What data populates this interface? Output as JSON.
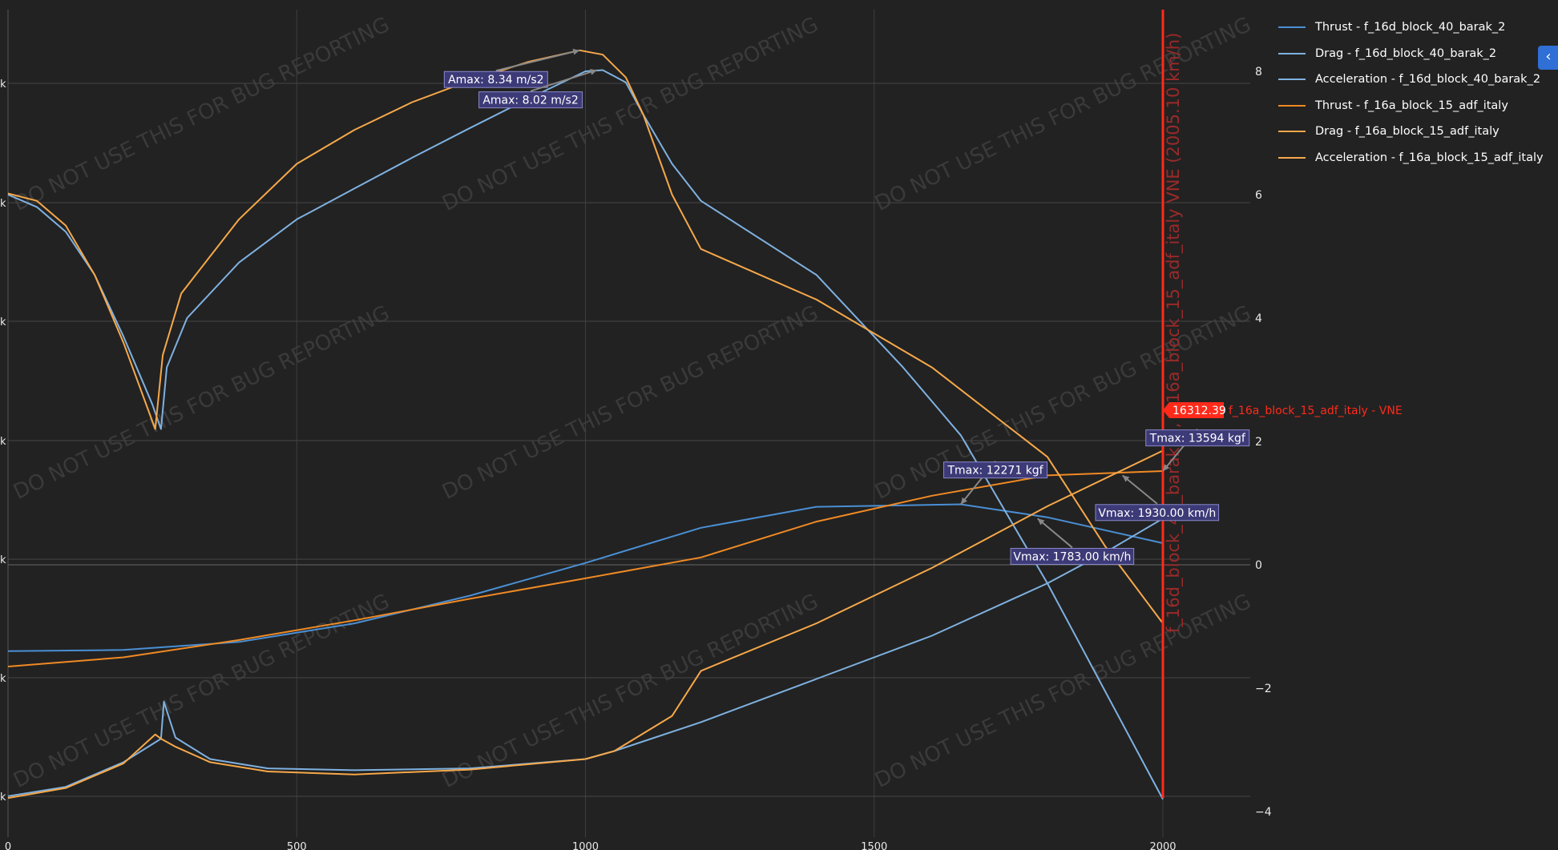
{
  "watermark": "DO NOT USE THIS FOR BUG REPORTING",
  "collapse_icon": "chevron-left-icon",
  "chart_data": {
    "type": "line",
    "grid": true,
    "legend": "top-right",
    "x_range": [
      0,
      2150
    ],
    "x_ticks": [
      0,
      500,
      1000,
      1500,
      2000
    ],
    "x_tick_labels": [
      "0",
      "500",
      "1000",
      "1500",
      "2000"
    ],
    "y2_range": [
      -4,
      8
    ],
    "y2_ticks": [
      -4,
      -2,
      0,
      2,
      4,
      6,
      8
    ],
    "y2_tick_labels": [
      "−4",
      "−2",
      "0",
      "2",
      "4",
      "6",
      "8"
    ],
    "left_tick_marks": [
      "k",
      "k",
      "k",
      "k",
      "k",
      "k",
      "k",
      "0"
    ],
    "vne": {
      "x": 2000,
      "vertical_label": "f_16d_block_40_barak_2, f_16a_block_15_adf_italy VNE (2005.10 km/h)",
      "value_label": "16312.39",
      "name_label": "f_16a_block_15_adf_italy - VNE",
      "color": "#ff2a1a"
    },
    "series": [
      {
        "name": "Thrust - f_16d_block_40_barak_2",
        "color": "#4a8fd4",
        "points": [
          [
            0,
            -1.4
          ],
          [
            200,
            -1.38
          ],
          [
            400,
            -1.25
          ],
          [
            600,
            -0.95
          ],
          [
            800,
            -0.5
          ],
          [
            1000,
            0.03
          ],
          [
            1200,
            0.6
          ],
          [
            1400,
            0.94
          ],
          [
            1650,
            0.98
          ],
          [
            1800,
            0.77
          ],
          [
            2000,
            0.35
          ]
        ]
      },
      {
        "name": "Drag - f_16d_block_40_barak_2",
        "color": "#7fb1e0",
        "points": [
          [
            0,
            -3.75
          ],
          [
            100,
            -3.6
          ],
          [
            200,
            -3.2
          ],
          [
            265,
            -2.82
          ],
          [
            270,
            -2.22
          ],
          [
            290,
            -2.8
          ],
          [
            350,
            -3.15
          ],
          [
            450,
            -3.3
          ],
          [
            600,
            -3.33
          ],
          [
            800,
            -3.3
          ],
          [
            1000,
            -3.15
          ],
          [
            1050,
            -3.02
          ],
          [
            1200,
            -2.55
          ],
          [
            1400,
            -1.85
          ],
          [
            1600,
            -1.15
          ],
          [
            1800,
            -0.3
          ],
          [
            1900,
            0.2
          ],
          [
            2000,
            0.75
          ]
        ]
      },
      {
        "name": "Acceleration - f_16d_block_40_barak_2",
        "color": "#7fb1e0",
        "points": [
          [
            0,
            6.0
          ],
          [
            50,
            5.8
          ],
          [
            100,
            5.4
          ],
          [
            150,
            4.7
          ],
          [
            200,
            3.7
          ],
          [
            250,
            2.6
          ],
          [
            265,
            2.2
          ],
          [
            275,
            3.2
          ],
          [
            310,
            4.0
          ],
          [
            400,
            4.9
          ],
          [
            500,
            5.6
          ],
          [
            600,
            6.1
          ],
          [
            700,
            6.6
          ],
          [
            800,
            7.08
          ],
          [
            900,
            7.55
          ],
          [
            1000,
            8.0
          ],
          [
            1030,
            8.02
          ],
          [
            1070,
            7.82
          ],
          [
            1100,
            7.3
          ],
          [
            1150,
            6.5
          ],
          [
            1200,
            5.9
          ],
          [
            1400,
            4.7
          ],
          [
            1550,
            3.2
          ],
          [
            1650,
            2.1
          ],
          [
            1800,
            -0.3
          ],
          [
            2000,
            -3.8
          ]
        ]
      },
      {
        "name": "Thrust - f_16a_block_15_adf_italy",
        "color": "#f08a24",
        "points": [
          [
            0,
            -1.65
          ],
          [
            200,
            -1.5
          ],
          [
            400,
            -1.22
          ],
          [
            600,
            -0.9
          ],
          [
            800,
            -0.55
          ],
          [
            1000,
            -0.22
          ],
          [
            1200,
            0.12
          ],
          [
            1400,
            0.7
          ],
          [
            1600,
            1.12
          ],
          [
            1800,
            1.45
          ],
          [
            2000,
            1.52
          ]
        ]
      },
      {
        "name": "Drag - f_16a_block_15_adf_italy",
        "color": "#f6a84a",
        "points": [
          [
            0,
            -3.78
          ],
          [
            100,
            -3.62
          ],
          [
            200,
            -3.22
          ],
          [
            255,
            -2.75
          ],
          [
            265,
            -2.82
          ],
          [
            290,
            -2.95
          ],
          [
            350,
            -3.2
          ],
          [
            450,
            -3.35
          ],
          [
            600,
            -3.4
          ],
          [
            800,
            -3.32
          ],
          [
            1000,
            -3.15
          ],
          [
            1050,
            -3.02
          ],
          [
            1150,
            -2.45
          ],
          [
            1200,
            -1.72
          ],
          [
            1400,
            -0.95
          ],
          [
            1600,
            -0.05
          ],
          [
            1800,
            0.95
          ],
          [
            2000,
            1.85
          ]
        ]
      },
      {
        "name": "Acceleration - f_16a_block_15_adf_italy",
        "color": "#f6a84a",
        "points": [
          [
            0,
            6.02
          ],
          [
            50,
            5.9
          ],
          [
            100,
            5.5
          ],
          [
            150,
            4.7
          ],
          [
            200,
            3.6
          ],
          [
            255,
            2.2
          ],
          [
            268,
            3.4
          ],
          [
            300,
            4.4
          ],
          [
            400,
            5.6
          ],
          [
            500,
            6.5
          ],
          [
            600,
            7.05
          ],
          [
            700,
            7.5
          ],
          [
            800,
            7.85
          ],
          [
            900,
            8.15
          ],
          [
            990,
            8.34
          ],
          [
            1030,
            8.27
          ],
          [
            1070,
            7.9
          ],
          [
            1100,
            7.3
          ],
          [
            1150,
            6.0
          ],
          [
            1200,
            5.12
          ],
          [
            1400,
            4.3
          ],
          [
            1600,
            3.2
          ],
          [
            1800,
            1.75
          ],
          [
            1900,
            0.3
          ],
          [
            2000,
            -0.95
          ]
        ]
      }
    ],
    "annotations": [
      {
        "text": "Amax: 8.34 m/s2",
        "x": 990,
        "y": 8.34,
        "label_x": 845,
        "label_y": 7.88
      },
      {
        "text": "Amax: 8.02 m/s2",
        "x": 1020,
        "y": 8.02,
        "label_x": 905,
        "label_y": 7.55
      },
      {
        "text": "Tmax: 12271 kgf",
        "x": 1650,
        "y": 0.98,
        "label_x": 1710,
        "label_y": 1.55
      },
      {
        "text": "Tmax: 13594 kgf",
        "x": 2000,
        "y": 1.52,
        "label_x": 2060,
        "label_y": 2.07
      },
      {
        "text": "Vmax: 1930.00 km/h",
        "x": 1930,
        "y": 1.45,
        "label_x": 1990,
        "label_y": 0.86
      },
      {
        "text": "Vmax: 1783.00 km/h",
        "x": 1783,
        "y": 0.75,
        "label_x": 1843,
        "label_y": 0.15
      }
    ]
  }
}
